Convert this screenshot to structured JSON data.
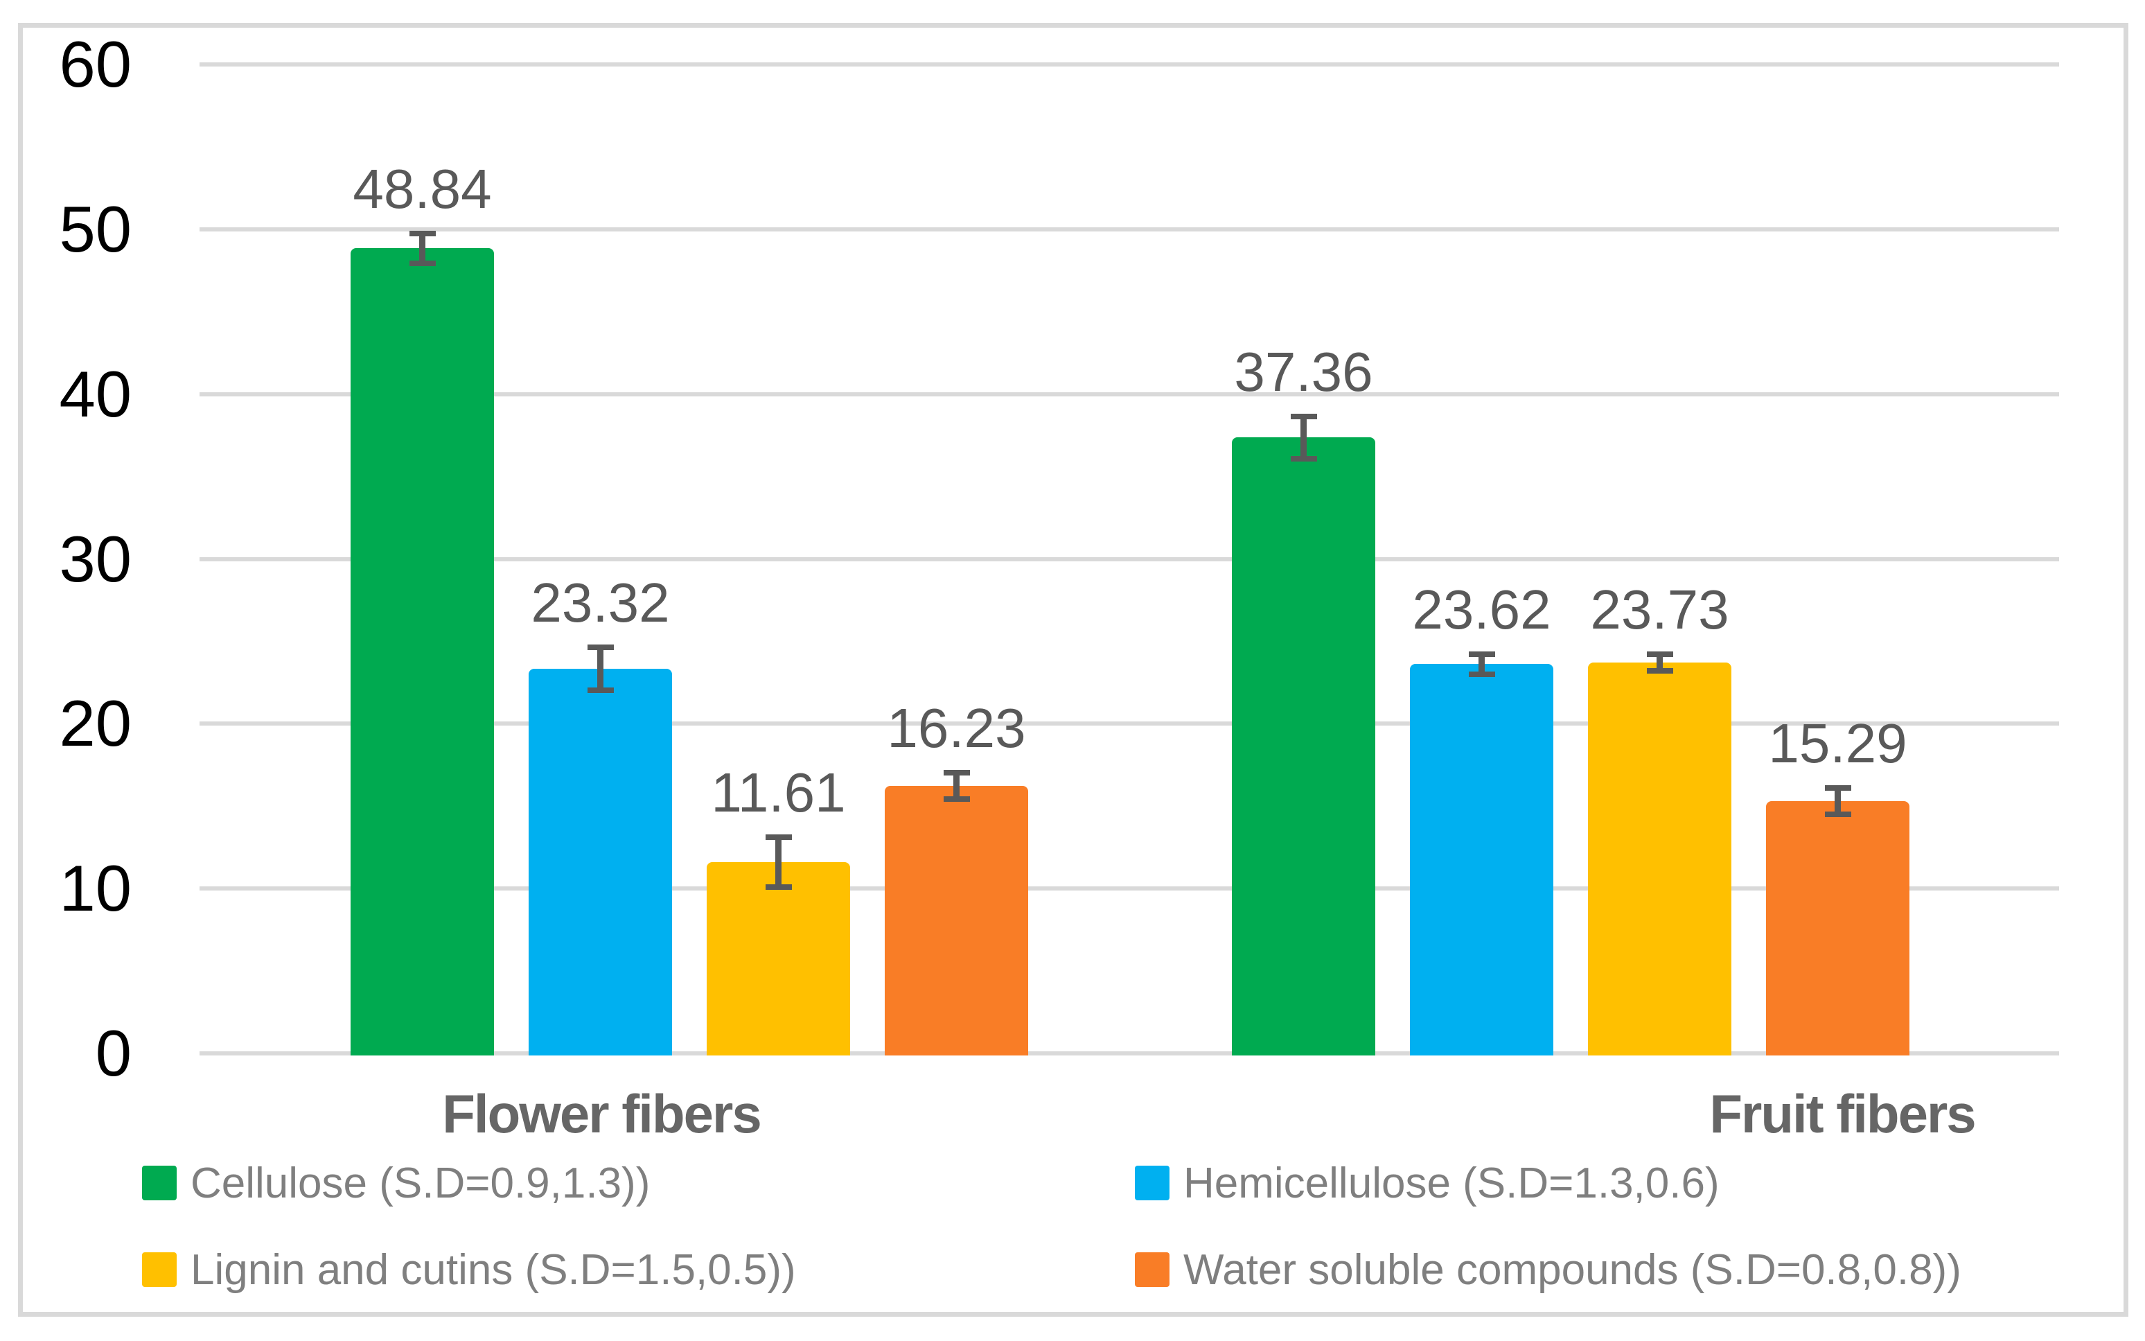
{
  "figure": {
    "background": "#FFFFFF",
    "frame_border_color": "#D9D9D9"
  },
  "colors": {
    "gridline": "#D9D9D9",
    "axis_tick_label": "#000000",
    "value_label": "#595959",
    "category_label": "#666666",
    "legend_label": "#7F7F7F",
    "error_bar": "#595959"
  },
  "chart_data": {
    "type": "bar",
    "title": "",
    "xlabel": "",
    "ylabel": "",
    "categories": [
      "Flower fibers",
      "Fruit fibers"
    ],
    "series": [
      {
        "name": "Cellulose (S.D=0.9,1.3))",
        "key": "cellulose",
        "color": "#00AA50",
        "values": [
          48.84,
          37.36
        ],
        "labels": [
          "48.84",
          "37.36"
        ],
        "sd": [
          0.9,
          1.3
        ]
      },
      {
        "name": "Hemicellulose (S.D=1.3,0.6)",
        "key": "hemicellulose",
        "color": "#00B0F0",
        "values": [
          23.32,
          23.62
        ],
        "labels": [
          "23.32",
          "23.62"
        ],
        "sd": [
          1.3,
          0.6
        ]
      },
      {
        "name": "Lignin and cutins (S.D=1.5,0.5))",
        "key": "lignin-and-cutins",
        "color": "#FFC000",
        "values": [
          11.61,
          23.73
        ],
        "labels": [
          "11.61",
          "23.73"
        ],
        "sd": [
          1.5,
          0.5
        ]
      },
      {
        "name": "Water soluble compounds (S.D=0.8,0.8))",
        "key": "water-soluble-compounds",
        "color": "#F97D26",
        "values": [
          16.23,
          15.29
        ],
        "labels": [
          "16.23",
          "15.29"
        ],
        "sd": [
          0.8,
          0.8
        ]
      }
    ],
    "ylim": [
      0,
      60
    ],
    "yticks": [
      0,
      10,
      20,
      30,
      40,
      50,
      60
    ],
    "ytick_labels": [
      "0",
      "10",
      "20",
      "30",
      "40",
      "50",
      "60"
    ],
    "grid": true,
    "error_bars": true,
    "legend_position": "bottom"
  }
}
